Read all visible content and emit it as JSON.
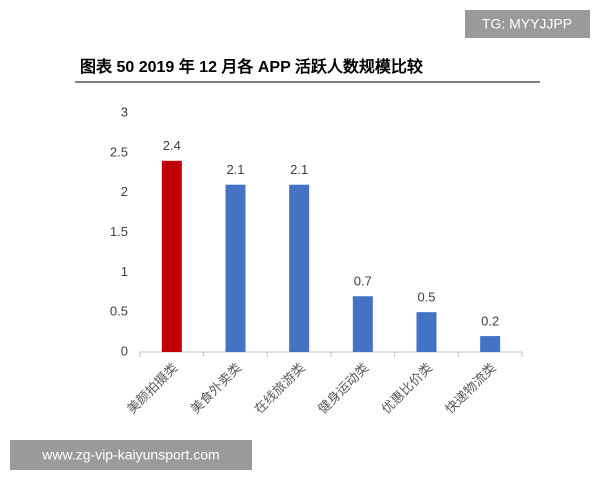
{
  "chart_data": {
    "type": "bar",
    "title": "图表 50 2019 年 12 月各 APP 活跃人数规模比较",
    "categories": [
      "美颜拍摄类",
      "美食外卖类",
      "在线旅游类",
      "健身运动类",
      "优惠比价类",
      "快递物流类"
    ],
    "values": [
      2.4,
      2.1,
      2.1,
      0.7,
      0.5,
      0.2
    ],
    "colors": [
      "#c00000",
      "#4472c4",
      "#4472c4",
      "#4472c4",
      "#4472c4",
      "#4472c4"
    ],
    "ylim": [
      0,
      3
    ],
    "yticks": [
      0,
      0.5,
      1,
      1.5,
      2,
      2.5,
      3
    ],
    "grid": false
  },
  "watermarks": [
    "TG: MYYJJPP",
    "www.zg-vip-kaiyunsport.com"
  ]
}
